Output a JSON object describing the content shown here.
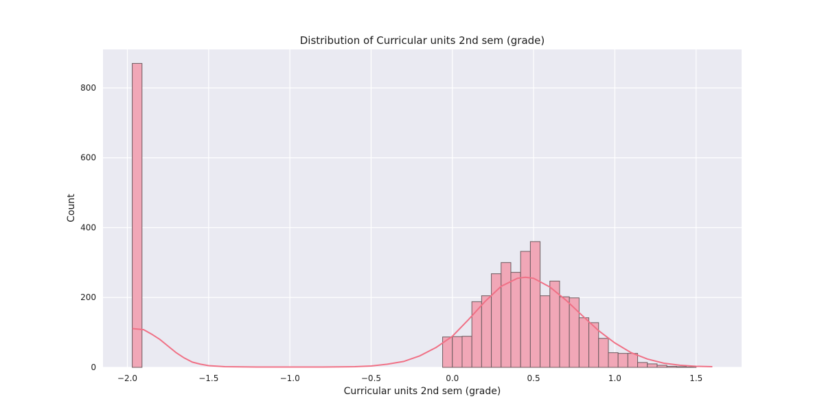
{
  "chart_data": {
    "type": "histogram",
    "title": "Distribution of Curricular units 2nd sem (grade)",
    "xlabel": "Curricular units 2nd sem (grade)",
    "ylabel": "Count",
    "xlim": [
      -2.15,
      1.78
    ],
    "ylim": [
      0,
      910
    ],
    "xticks": [
      -2.0,
      -1.5,
      -1.0,
      -0.5,
      0.0,
      0.5,
      1.0,
      1.5
    ],
    "xtick_labels": [
      "−2.0",
      "−1.5",
      "−1.0",
      "−0.5",
      "0.0",
      "0.5",
      "1.0",
      "1.5"
    ],
    "yticks": [
      0,
      200,
      400,
      600,
      800
    ],
    "ytick_labels": [
      "0",
      "200",
      "400",
      "600",
      "800"
    ],
    "grid": true,
    "colors": {
      "background": "#eaeaf2",
      "bar_fill": "#f1a7b7",
      "bar_edge": "#6b5a5e",
      "kde_line": "#f07085"
    },
    "bins": [
      {
        "x0": -1.97,
        "x1": -1.91,
        "count": 870
      },
      {
        "x0": -0.06,
        "x1": 0.0,
        "count": 87
      },
      {
        "x0": 0.0,
        "x1": 0.06,
        "count": 88
      },
      {
        "x0": 0.06,
        "x1": 0.12,
        "count": 89
      },
      {
        "x0": 0.12,
        "x1": 0.18,
        "count": 188
      },
      {
        "x0": 0.18,
        "x1": 0.24,
        "count": 205
      },
      {
        "x0": 0.24,
        "x1": 0.3,
        "count": 268
      },
      {
        "x0": 0.3,
        "x1": 0.36,
        "count": 300
      },
      {
        "x0": 0.36,
        "x1": 0.42,
        "count": 272
      },
      {
        "x0": 0.42,
        "x1": 0.48,
        "count": 332
      },
      {
        "x0": 0.48,
        "x1": 0.54,
        "count": 360
      },
      {
        "x0": 0.54,
        "x1": 0.6,
        "count": 205
      },
      {
        "x0": 0.6,
        "x1": 0.66,
        "count": 247
      },
      {
        "x0": 0.66,
        "x1": 0.72,
        "count": 202
      },
      {
        "x0": 0.72,
        "x1": 0.78,
        "count": 199
      },
      {
        "x0": 0.78,
        "x1": 0.84,
        "count": 142
      },
      {
        "x0": 0.84,
        "x1": 0.9,
        "count": 128
      },
      {
        "x0": 0.9,
        "x1": 0.96,
        "count": 83
      },
      {
        "x0": 0.96,
        "x1": 1.02,
        "count": 42
      },
      {
        "x0": 1.02,
        "x1": 1.08,
        "count": 40
      },
      {
        "x0": 1.08,
        "x1": 1.14,
        "count": 40
      },
      {
        "x0": 1.14,
        "x1": 1.2,
        "count": 14
      },
      {
        "x0": 1.2,
        "x1": 1.26,
        "count": 10
      },
      {
        "x0": 1.26,
        "x1": 1.32,
        "count": 6
      },
      {
        "x0": 1.32,
        "x1": 1.38,
        "count": 3
      },
      {
        "x0": 1.38,
        "x1": 1.44,
        "count": 2
      },
      {
        "x0": 1.44,
        "x1": 1.5,
        "count": 1
      }
    ],
    "kde": {
      "x": [
        -1.97,
        -1.9,
        -1.85,
        -1.8,
        -1.75,
        -1.7,
        -1.65,
        -1.6,
        -1.55,
        -1.5,
        -1.4,
        -1.2,
        -1.0,
        -0.8,
        -0.6,
        -0.5,
        -0.4,
        -0.3,
        -0.2,
        -0.1,
        0.0,
        0.1,
        0.2,
        0.3,
        0.4,
        0.45,
        0.5,
        0.6,
        0.7,
        0.8,
        0.9,
        1.0,
        1.1,
        1.2,
        1.3,
        1.4,
        1.5,
        1.6
      ],
      "y": [
        111,
        108,
        95,
        80,
        61,
        42,
        27,
        15,
        9,
        5,
        2,
        1,
        1,
        1,
        2,
        4,
        9,
        17,
        33,
        57,
        89,
        137,
        188,
        232,
        255,
        258,
        255,
        230,
        192,
        148,
        105,
        70,
        42,
        24,
        12,
        6,
        3,
        2
      ]
    }
  }
}
